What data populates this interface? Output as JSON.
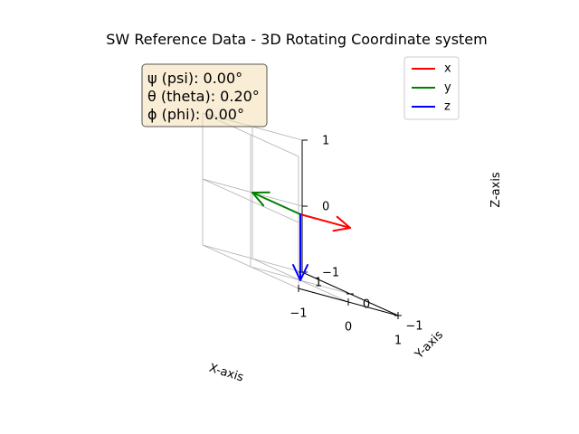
{
  "chart_data": {
    "type": "line",
    "title": "SW Reference Data - 3D Rotating Coordinate system",
    "xlabel": "X-axis",
    "ylabel": "Y-axis",
    "zlabel": "Z-axis",
    "xlim": [
      -1,
      1
    ],
    "ylim": [
      -1,
      1
    ],
    "zlim": [
      -1,
      1
    ],
    "x_ticks": [
      "−1",
      "0",
      "1"
    ],
    "y_ticks": [
      "−1",
      "0",
      "1"
    ],
    "z_ticks": [
      "−1",
      "0",
      "1"
    ],
    "grid": true,
    "legend_position": "top-right",
    "angles": [
      {
        "label": "ψ (psi): 0.00°"
      },
      {
        "label": "θ (theta): 0.20°"
      },
      {
        "label": "ϕ (phi): 0.00°"
      }
    ],
    "series": [
      {
        "name": "x",
        "color": "#ff0000",
        "start": [
          0,
          0,
          0
        ],
        "end": [
          1,
          0,
          0
        ]
      },
      {
        "name": "y",
        "color": "#008000",
        "start": [
          0,
          0,
          0
        ],
        "end": [
          0,
          1,
          0
        ]
      },
      {
        "name": "z",
        "color": "#0000ff",
        "start": [
          0,
          0,
          0
        ],
        "end": [
          0,
          0,
          -1
        ]
      }
    ]
  }
}
